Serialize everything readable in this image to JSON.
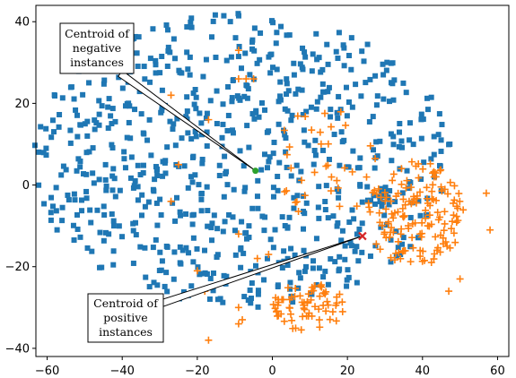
{
  "chart_data": {
    "type": "scatter",
    "title": "",
    "xlabel": "",
    "ylabel": "",
    "xlim": [
      -63,
      63
    ],
    "ylim": [
      -42,
      44
    ],
    "xticks": [
      -60,
      -40,
      -20,
      0,
      20,
      40,
      60
    ],
    "yticks": [
      -40,
      -20,
      0,
      20,
      40
    ],
    "grid": false,
    "colors": {
      "negative": "#1f77b4",
      "positive": "#ff7f0e",
      "neg_centroid": "#2ca02c",
      "pos_centroid": "#d62728"
    },
    "series": [
      {
        "marker": "square",
        "color": "#1f77b4",
        "cluster": {
          "cx": -8,
          "cy": 6,
          "rx": 56,
          "ry": 36,
          "count": 760,
          "seed": 7
        }
      },
      {
        "marker": "plus",
        "color": "#ff7f0e",
        "clusters": [
          {
            "cx": 38,
            "cy": -7,
            "rx": 13,
            "ry": 13,
            "count": 150,
            "seed": 11
          },
          {
            "cx": 10,
            "cy": -30,
            "rx": 10,
            "ry": 6,
            "count": 70,
            "seed": 23
          },
          {
            "cx": 14,
            "cy": 5,
            "rx": 14,
            "ry": 14,
            "count": 35,
            "seed": 31
          }
        ],
        "extra_points": [
          [
            -7,
            26
          ],
          [
            -5,
            26
          ],
          [
            -9,
            26
          ],
          [
            -27,
            22
          ],
          [
            -17,
            16
          ],
          [
            -25,
            5
          ],
          [
            -27,
            -4
          ],
          [
            -20,
            -21
          ],
          [
            -18,
            -26
          ],
          [
            -9,
            -30
          ],
          [
            -9,
            -12
          ],
          [
            -17,
            -38
          ],
          [
            -8,
            -33
          ],
          [
            -9,
            -34
          ],
          [
            -4,
            -18
          ],
          [
            -1,
            -17
          ],
          [
            -9,
            33
          ],
          [
            57,
            -2
          ],
          [
            58,
            -11
          ],
          [
            50,
            -23
          ],
          [
            47,
            -26
          ]
        ]
      }
    ],
    "centroids": {
      "negative": {
        "x": -4.5,
        "y": 3.5
      },
      "positive": {
        "x": 24,
        "y": -12.5
      }
    },
    "annotations": {
      "negative_lines": [
        "Centroid of",
        "negative",
        "instances"
      ],
      "positive_lines": [
        "Centroid of",
        "positive",
        "instances"
      ]
    }
  }
}
